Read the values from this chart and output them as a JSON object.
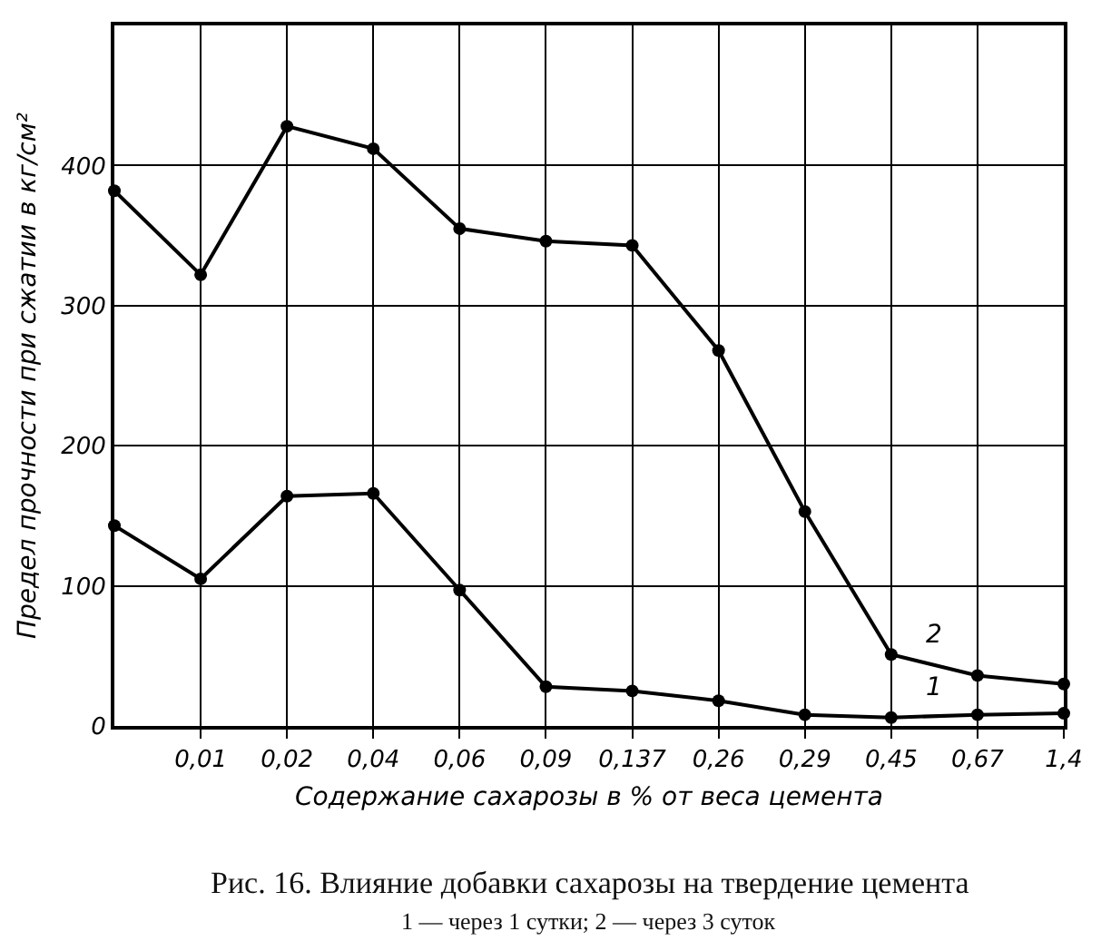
{
  "chart_data": {
    "type": "line",
    "title": "Рис. 16. Влияние добавки сахарозы на твердение цемента",
    "subtitle": "1 — через 1 сутки; 2 — через 3 суток",
    "xlabel": "Содержание сахарозы в % от веса цемента",
    "ylabel": "Предел прочности при сжатии в кг/см²",
    "categories": [
      null,
      "0,01",
      "0,02",
      "0,04",
      "0,06",
      "0,09",
      "0,137",
      "0,26",
      "0,29",
      "0,45",
      "0,67",
      "1,4"
    ],
    "series": [
      {
        "name": "1",
        "color": "#000000",
        "values": [
          143,
          105,
          164,
          166,
          97,
          28,
          25,
          18,
          8,
          6,
          8,
          9
        ]
      },
      {
        "name": "2",
        "color": "#000000",
        "values": [
          382,
          322,
          428,
          412,
          355,
          346,
          343,
          268,
          153,
          51,
          36,
          30
        ]
      }
    ],
    "ylim": [
      0,
      500
    ],
    "yticks": [
      0,
      100,
      200,
      300,
      400
    ],
    "grid": true,
    "marker": "circle",
    "line_style": "solid"
  }
}
